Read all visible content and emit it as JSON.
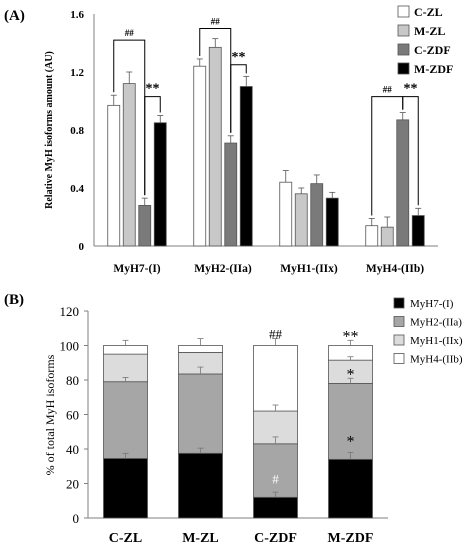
{
  "colors": {
    "c_zl": "#ffffff",
    "m_zl": "#c8c8c8",
    "c_zdf": "#7a7a7a",
    "m_zdf": "#000000",
    "myh7": "#000000",
    "myh2": "#a6a6a6",
    "myh1": "#dcdcdc",
    "myh4": "#ffffff",
    "axis": "#7f7f7f",
    "bar_edge": "#555555"
  },
  "chart_data": [
    {
      "panel_label": "(A)",
      "type": "bar",
      "ylabel": "Relative MyH isoforms amount (AU)",
      "ylim": [
        0,
        1.6
      ],
      "yticks": [
        "0",
        "0.4",
        "0.8",
        "1.2",
        "1.6"
      ],
      "ytick_values": [
        0,
        0.4,
        0.8,
        1.2,
        1.6
      ],
      "categories": [
        "MyH7-(I)",
        "MyH2-(IIa)",
        "MyH1-(IIx)",
        "MyH4-(IIb)"
      ],
      "series": [
        {
          "name": "C-ZL",
          "color_key": "c_zl",
          "values": [
            0.97,
            1.24,
            0.44,
            0.14
          ],
          "errors": [
            0.07,
            0.05,
            0.08,
            0.05
          ]
        },
        {
          "name": "M-ZL",
          "color_key": "m_zl",
          "values": [
            1.12,
            1.37,
            0.36,
            0.13
          ],
          "errors": [
            0.08,
            0.06,
            0.04,
            0.07
          ]
        },
        {
          "name": "C-ZDF",
          "color_key": "c_zdf",
          "values": [
            0.28,
            0.71,
            0.43,
            0.87
          ],
          "errors": [
            0.05,
            0.05,
            0.06,
            0.05
          ]
        },
        {
          "name": "M-ZDF",
          "color_key": "m_zdf",
          "values": [
            0.85,
            1.1,
            0.33,
            0.21
          ],
          "errors": [
            0.05,
            0.07,
            0.04,
            0.05
          ]
        }
      ],
      "annotations": [
        {
          "category": 0,
          "from": 0,
          "to": 2,
          "level": 1.42,
          "text": "##"
        },
        {
          "category": 0,
          "from": 2,
          "to": 3,
          "level": 1.03,
          "text": "**"
        },
        {
          "category": 1,
          "from": 0,
          "to": 2,
          "level": 1.5,
          "text": "##"
        },
        {
          "category": 1,
          "from": 2,
          "to": 3,
          "level": 1.25,
          "text": "**"
        },
        {
          "category": 3,
          "from": 0,
          "to": 2,
          "level": 1.03,
          "text": "##"
        },
        {
          "category": 3,
          "from": 2,
          "to": 3,
          "level": 1.03,
          "text": "**"
        }
      ],
      "legend": {
        "position": "top-right"
      }
    },
    {
      "panel_label": "(B)",
      "type": "bar",
      "stacked": true,
      "ylabel": "% of total MyH isoforms",
      "ylim": [
        0,
        120
      ],
      "yticks": [
        "0",
        "20",
        "40",
        "60",
        "80",
        "100",
        "120"
      ],
      "ytick_values": [
        0,
        20,
        40,
        60,
        80,
        100,
        120
      ],
      "categories": [
        "C-ZL",
        "M-ZL",
        "C-ZDF",
        "M-ZDF"
      ],
      "series": [
        {
          "name": "MyH7-(I)",
          "color_key": "myh7",
          "values": [
            34.5,
            37.5,
            12,
            34
          ],
          "errors": [
            3,
            3,
            3,
            4
          ]
        },
        {
          "name": "MyH2-(IIa)",
          "color_key": "myh2",
          "values": [
            44.5,
            46,
            31,
            44
          ],
          "errors": [
            2.5,
            4,
            4,
            3
          ]
        },
        {
          "name": "MyH1-(IIx)",
          "color_key": "myh1",
          "values": [
            16,
            12.5,
            19,
            13.5
          ],
          "errors": [
            0,
            0,
            3.5,
            2
          ]
        },
        {
          "name": "MyH4-(IIb)",
          "color_key": "myh4",
          "values": [
            5,
            4,
            38,
            8.5
          ],
          "errors": [
            3,
            4,
            4,
            3
          ]
        }
      ],
      "annotations": [
        {
          "category": 2,
          "value": 107,
          "text": "##"
        },
        {
          "category": 3,
          "value": 107,
          "text": "**"
        },
        {
          "category": 3,
          "value": 85,
          "text": "*"
        },
        {
          "category": 2,
          "value": 23,
          "text": "#"
        },
        {
          "category": 3,
          "value": 46,
          "text": "*"
        }
      ],
      "legend": {
        "position": "top-right"
      }
    }
  ]
}
